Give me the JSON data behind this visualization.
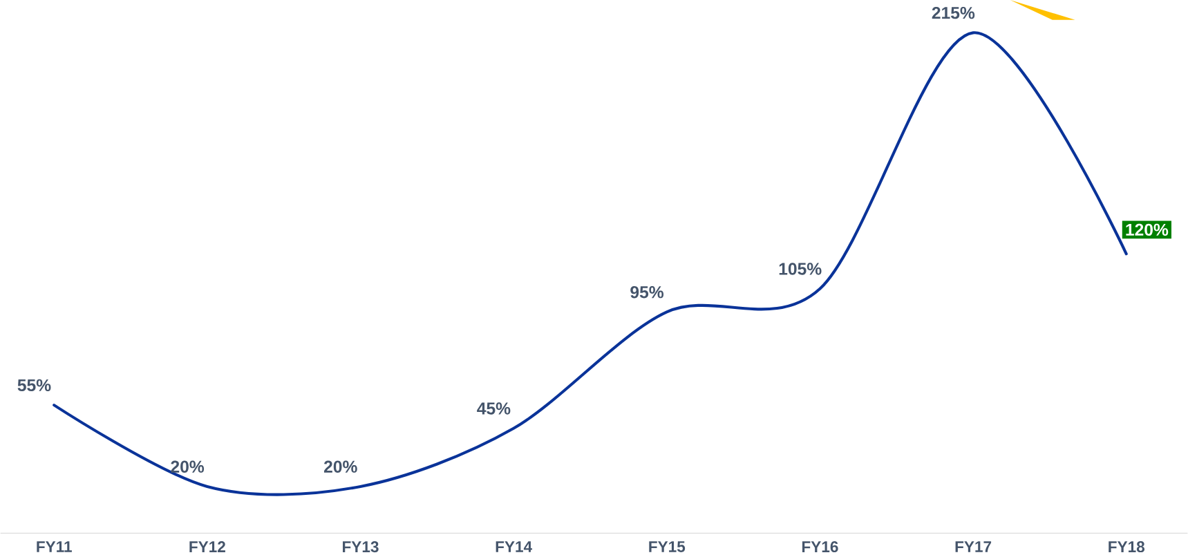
{
  "chart_data": {
    "type": "line",
    "categories": [
      "FY11",
      "FY12",
      "FY13",
      "FY14",
      "FY15",
      "FY16",
      "FY17",
      "FY18"
    ],
    "series": [
      {
        "color": "#0a3399",
        "values": [
          55,
          20,
          20,
          45,
          95,
          105,
          215,
          120
        ],
        "value_labels": [
          "55%",
          "20%",
          "20%",
          "45%",
          "95%",
          "105%",
          "215%",
          "120%"
        ]
      }
    ],
    "grid": false,
    "marker": "none",
    "line_style": "solid"
  }
}
